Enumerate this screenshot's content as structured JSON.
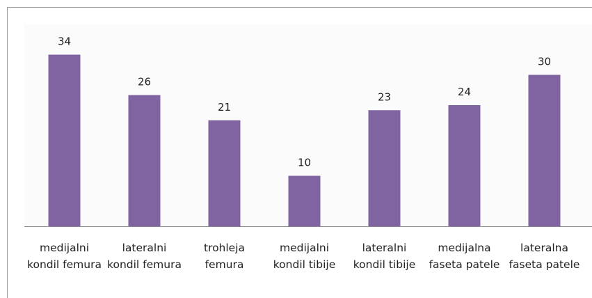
{
  "chart_data": {
    "type": "bar",
    "categories": [
      "medijalni kondil femura",
      "lateralni kondil femura",
      "trohleja femura",
      "medijalni kondil tibije",
      "lateralni kondil tibije",
      "medijalna faseta patele",
      "lateralna faseta patele"
    ],
    "values": [
      34,
      26,
      21,
      10,
      23,
      24,
      30
    ],
    "color": "#8064a2",
    "ylim": [
      0,
      40
    ]
  }
}
